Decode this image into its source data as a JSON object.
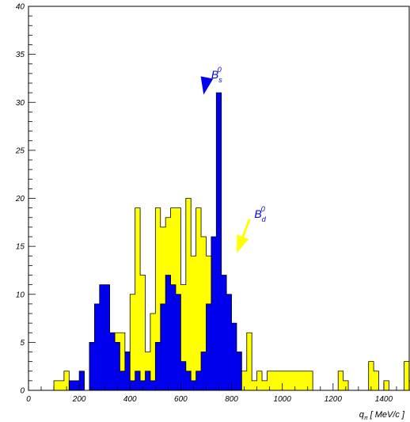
{
  "chart_data": {
    "type": "histogram",
    "xlabel": "q_π [ MeV/c ]",
    "xlabel_parts": {
      "main": "q",
      "sub": "π",
      "rest": " [ MeV/c ]"
    },
    "ylabel": "",
    "xlim": [
      0,
      1500
    ],
    "ylim": [
      0,
      40
    ],
    "bin_width": 20,
    "x_ticks": [
      0,
      200,
      400,
      600,
      800,
      1000,
      1200,
      1400
    ],
    "y_ticks": [
      0,
      5,
      10,
      15,
      20,
      25,
      30,
      35,
      40
    ],
    "grid": false,
    "series": [
      {
        "name": "B_d^0",
        "color": "#ffff00",
        "bin_start": 100,
        "counts": [
          1,
          1,
          2,
          0,
          0,
          0,
          0,
          0,
          0,
          0,
          0,
          2,
          6,
          6,
          4,
          10,
          19,
          12,
          4,
          8,
          19,
          17,
          18,
          19,
          19,
          11,
          20,
          14,
          19,
          16,
          14,
          9,
          8,
          5,
          4,
          3,
          2,
          2,
          6,
          1,
          2,
          1,
          2,
          2,
          2,
          2,
          2,
          2,
          2,
          2,
          2,
          0,
          0,
          0,
          0,
          0,
          2,
          1,
          0,
          0,
          0,
          0,
          3,
          2,
          0,
          1,
          0,
          0,
          0,
          3,
          1
        ]
      },
      {
        "name": "B_s^0",
        "color": "#0000ee",
        "bin_start": 100,
        "counts": [
          0,
          0,
          0,
          1,
          1,
          2,
          0,
          5,
          9,
          11,
          11,
          6,
          5,
          2,
          4,
          1,
          2,
          1,
          2,
          1,
          5,
          9,
          12,
          11,
          10,
          3,
          2,
          1,
          2,
          4,
          9,
          16,
          31,
          12,
          10,
          7,
          4,
          0
        ]
      }
    ],
    "annotations": [
      {
        "main": "B",
        "sub": "s",
        "sup": "0",
        "color": "#0000ee",
        "x": 720,
        "y": 32.5,
        "arrow_to": [
          690,
          30.8
        ]
      },
      {
        "main": "B",
        "sub": "d",
        "sup": "0",
        "color": "#ffff00",
        "x": 890,
        "y": 18,
        "arrow_to": [
          820,
          14.3
        ]
      }
    ]
  }
}
